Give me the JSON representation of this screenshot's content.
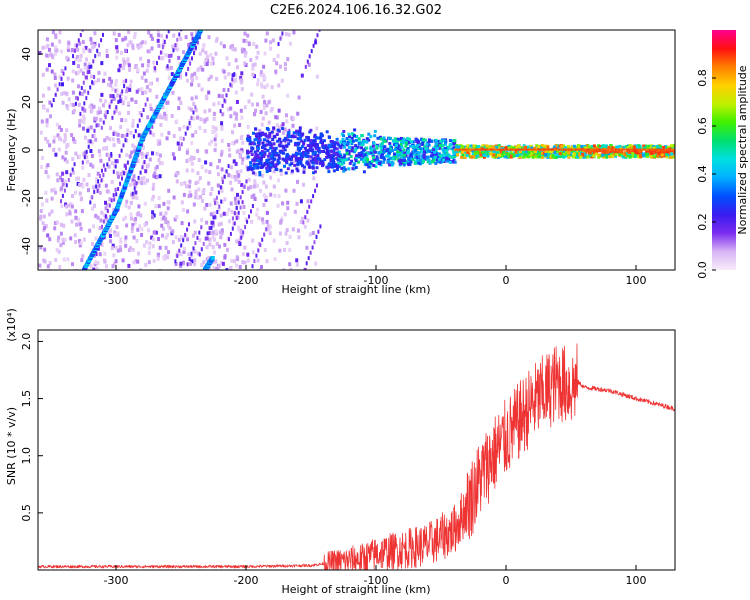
{
  "chart_data": [
    {
      "type": "heatmap",
      "title": "C2E6.2024.106.16.32.G02",
      "xlabel": "Height of straight line (km)",
      "ylabel": "Frequency (Hz)",
      "xlim": [
        -360,
        130
      ],
      "ylim": [
        -50,
        50
      ],
      "xticks": [
        -300,
        -200,
        -100,
        0,
        100
      ],
      "yticks": [
        -40,
        -20,
        0,
        20,
        40
      ],
      "colorbar": {
        "label": "Normalized spectral amplitude",
        "range": [
          0,
          1
        ],
        "ticks": [
          "0.0",
          "0.2",
          "0.4",
          "0.6",
          "0.8"
        ],
        "colormap": [
          "#f7ecfb",
          "#d8b4f4",
          "#7a2cf0",
          "#3a1cf0",
          "#0050ff",
          "#00b0ff",
          "#00e0e0",
          "#00e070",
          "#40f000",
          "#c0f000",
          "#ffd000",
          "#ff8000",
          "#ff1010",
          "#ff0090"
        ]
      },
      "features": [
        {
          "name": "diagonal trace A",
          "points": [
            [
              -325,
              -50
            ],
            [
              -300,
              -25
            ],
            [
              -280,
              5
            ],
            [
              -260,
              25
            ],
            [
              -235,
              50
            ]
          ]
        },
        {
          "name": "diagonal trace B",
          "points": [
            [
              -232,
              -50
            ],
            [
              -226,
              -45
            ]
          ]
        },
        {
          "name": "central ridge",
          "note": "signal concentrated near 0 Hz from -200 km to 130 km, strongest (red) above -40 km"
        }
      ]
    },
    {
      "type": "line",
      "xlabel": "Height of straight line (km)",
      "ylabel": "SNR (10 * v/v)",
      "y_multiplier": "(x10⁴)",
      "xlim": [
        -360,
        130
      ],
      "ylim": [
        0,
        2.1
      ],
      "xticks": [
        -300,
        -200,
        -100,
        0,
        100
      ],
      "yticks": [
        "0.5",
        "1.0",
        "1.5",
        "2.0"
      ],
      "color": "#ee3333",
      "series": [
        {
          "x": [
            -360,
            -300,
            -200,
            -150,
            -130,
            -110,
            -100,
            -80,
            -60,
            -40,
            -30,
            -20,
            -10,
            0,
            10,
            20,
            30,
            40,
            50,
            55,
            60,
            80,
            100,
            130
          ],
          "y": [
            0.03,
            0.03,
            0.03,
            0.04,
            0.07,
            0.1,
            0.14,
            0.18,
            0.22,
            0.35,
            0.55,
            0.8,
            1.0,
            1.15,
            1.3,
            1.45,
            1.55,
            1.65,
            1.6,
            1.65,
            1.6,
            1.57,
            1.5,
            1.41
          ]
        }
      ]
    }
  ]
}
